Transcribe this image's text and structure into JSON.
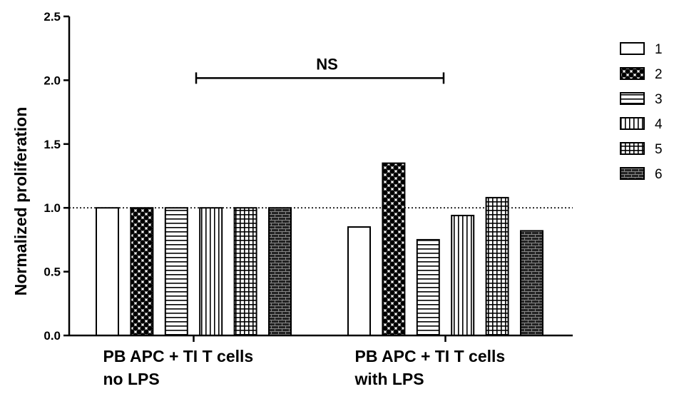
{
  "chart_data": {
    "type": "bar",
    "title": "",
    "xlabel": "",
    "ylabel": "Normalized proliferation",
    "ylim": [
      0,
      2.5
    ],
    "yticks": [
      "0.0",
      "0.5",
      "1.0",
      "1.5",
      "2.0",
      "2.5"
    ],
    "grid": false,
    "legend_position": "right",
    "reference_line": {
      "y": 1.0,
      "style": "dotted"
    },
    "categories": [
      {
        "line1": "PB APC + TI T cells",
        "line2": "no LPS"
      },
      {
        "line1": "PB APC + TI T cells",
        "line2": "with LPS"
      }
    ],
    "series": [
      {
        "name": "1",
        "pattern": "open",
        "values": [
          1.0,
          0.85
        ]
      },
      {
        "name": "2",
        "pattern": "checker",
        "values": [
          1.0,
          1.35
        ]
      },
      {
        "name": "3",
        "pattern": "horizontal-lines",
        "values": [
          1.0,
          0.75
        ]
      },
      {
        "name": "4",
        "pattern": "vertical-lines",
        "values": [
          1.0,
          0.94
        ]
      },
      {
        "name": "5",
        "pattern": "grid",
        "values": [
          1.0,
          1.08
        ]
      },
      {
        "name": "6",
        "pattern": "brick",
        "values": [
          1.0,
          0.82
        ]
      }
    ],
    "annotations": [
      {
        "text": "NS",
        "type": "bracket",
        "from_category": 0,
        "to_category": 1,
        "y": 2.0
      }
    ]
  }
}
